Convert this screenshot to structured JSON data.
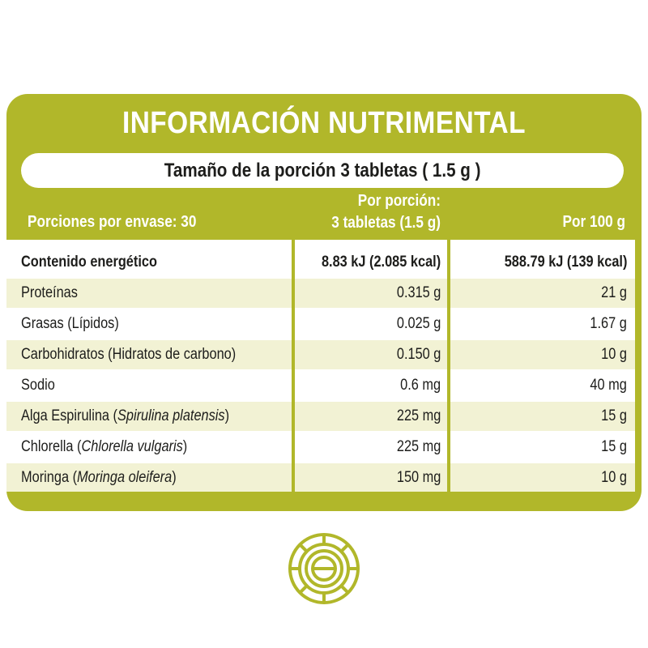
{
  "title": "INFORMACIÓN NUTRIMENTAL",
  "portion_size": "Tamaño de la porción 3 tabletas ( 1.5 g )",
  "header": {
    "servings": "Porciones por envase: 30",
    "per_portion_line1": "Por porción:",
    "per_portion_line2": "3 tabletas (1.5 g)",
    "per_100": "Por 100 g"
  },
  "rows": [
    {
      "name": "Contenido energético",
      "sci": "",
      "suffix": "",
      "portion": "8.83 kJ (2.085 kcal)",
      "per100": "588.79 kJ (139 kcal)"
    },
    {
      "name": "Proteínas",
      "sci": "",
      "suffix": "",
      "portion": "0.315 g",
      "per100": "21 g"
    },
    {
      "name": "Grasas (Lípidos)",
      "sci": "",
      "suffix": "",
      "portion": "0.025 g",
      "per100": "1.67 g"
    },
    {
      "name": "Carbohidratos (Hidratos de carbono)",
      "sci": "",
      "suffix": "",
      "portion": "0.150 g",
      "per100": "10 g"
    },
    {
      "name": "Sodio",
      "sci": "",
      "suffix": "",
      "portion": "0.6 mg",
      "per100": "40 mg"
    },
    {
      "name": "Alga Espirulina (",
      "sci": "Spirulina platensis",
      "suffix": ")",
      "portion": "225 mg",
      "per100": "15 g"
    },
    {
      "name": "Chlorella (",
      "sci": "Chlorella vulgaris",
      "suffix": ")",
      "portion": "225 mg",
      "per100": "15 g"
    },
    {
      "name": "Moringa (",
      "sci": "Moringa oleifera",
      "suffix": ")",
      "portion": "150 mg",
      "per100": "10 g"
    }
  ],
  "colors": {
    "accent": "#b1b72a",
    "row_shade": "#f2f2d4",
    "text": "#1d1d1b"
  },
  "logo_icon": "circular-seal-icon"
}
